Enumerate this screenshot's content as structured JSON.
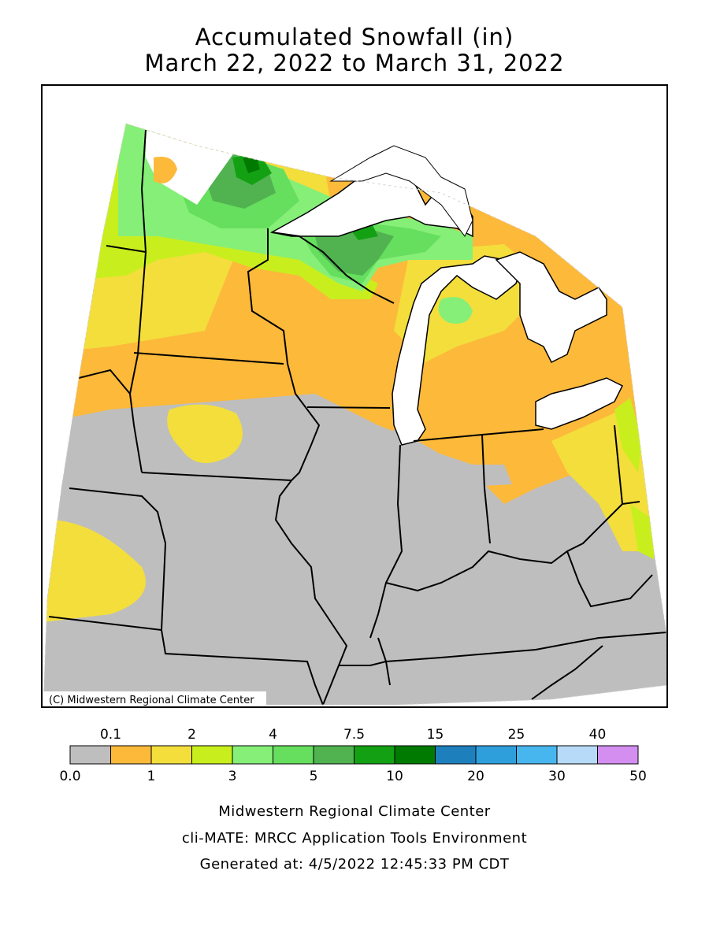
{
  "title": {
    "line1": "Accumulated Snowfall (in)",
    "line2": "March 22, 2022 to March 31, 2022"
  },
  "credit": "(C) Midwestern Regional Climate Center",
  "legend": {
    "top_labels": [
      "0.1",
      "2",
      "4",
      "7.5",
      "15",
      "25",
      "40"
    ],
    "bottom_labels": [
      "0.0",
      "1",
      "3",
      "5",
      "10",
      "20",
      "30",
      "50"
    ],
    "colors": [
      "#bebebe",
      "#fdb93a",
      "#f3de3c",
      "#c8ef1d",
      "#86ef78",
      "#66de5e",
      "#50b350",
      "#13a113",
      "#007a00",
      "#1e7fbd",
      "#2f9fdc",
      "#48b6ee",
      "#b7daf8",
      "#d38ef0"
    ]
  },
  "footer": {
    "line1": "Midwestern Regional Climate Center",
    "line2": "cli-MATE: MRCC Application Tools Environment",
    "line3": "Generated at: 4/5/2022 12:45:33 PM CDT"
  },
  "map_colors": {
    "gray": "#bebebe",
    "orange": "#fdb93a",
    "yellow": "#f3de3c",
    "lime": "#c8ef1d",
    "lightgreen": "#86ef78",
    "green": "#66de5e",
    "midgreen": "#50b350",
    "darkgreen": "#13a113",
    "deepgreen": "#007a00",
    "lake": "#ffffff"
  }
}
